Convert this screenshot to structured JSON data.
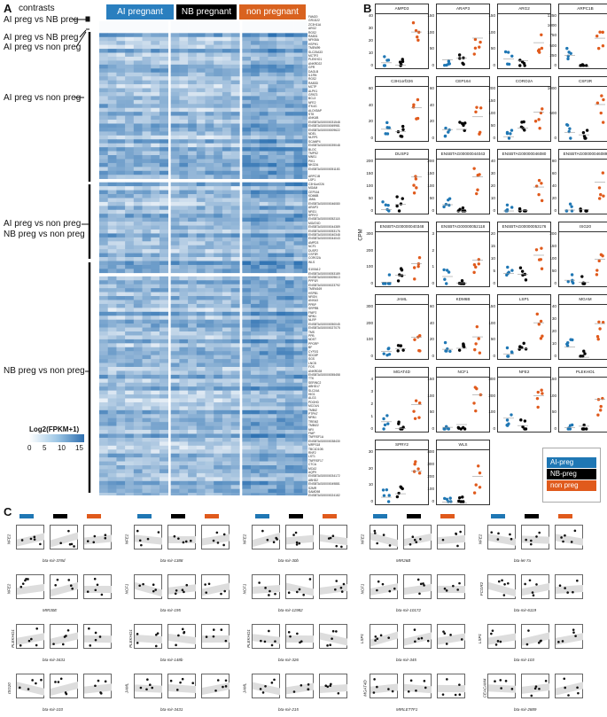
{
  "panels": {
    "a": "A",
    "b": "B",
    "c": "C"
  },
  "colors": {
    "ai": "#1f77b4",
    "nb": "#000000",
    "non": "#e05a1c"
  },
  "panelA": {
    "title": "contrasts",
    "groups": [
      "AI pregnant",
      "NB pregnant",
      "non pregnant"
    ],
    "contrasts": [
      "AI preg vs NB preg",
      "AI preg  vs NB preg",
      "AI preg vs non preg",
      "AI preg vs non preg",
      "AI preg  vs non preg",
      "NB preg  vs non preg",
      "NB preg  vs non preg"
    ],
    "legend": {
      "title": "Log2(FPKM+1)",
      "ticks": [
        "0",
        "5",
        "10",
        "15"
      ]
    },
    "genes": [
      "FAM20",
      "GR1D22",
      "ZC3H11A",
      "ARG2",
      "RGS2",
      "RAB31",
      "NFKBIA",
      "HSPH1",
      "TMEM99",
      "SLC25A33",
      "MCTP2",
      "PLEKHO1",
      "ANKRD22",
      "GPR",
      "DAGLB",
      "IL1RN",
      "RGS2",
      "RAB3D",
      "MCTP",
      "ALPK1",
      "GPAT3",
      "BCL3",
      "NFE2",
      "ITK4G",
      "ALOX5AP",
      "ST8",
      "ANKUB",
      "ENSBTAG00000031548",
      "ENSBTAG00000069981",
      "ENSBTAG00000009622",
      "NDEL",
      "NLRP1",
      "SCAMP4",
      "ENSBTAG00000039048",
      "BLOC",
      "TMPS2",
      "MNS1",
      "PIK1",
      "NKG2A",
      "ENSBTAG00000051183",
      "ARPC1B",
      "LSP1",
      "C3H1orf226",
      "MGAM",
      "CEP164",
      "KDM6B",
      "JAML",
      "ENSBTAG00000046080",
      "ARAP3",
      "NRG1",
      "SPRY2",
      "ENSBTAG00000052118",
      "MGAT4D",
      "ENSBTAG00000044389",
      "ENSBTAG00000053176",
      "ENSBTAG00000040348",
      "ENSBTAG00000044043",
      "AMPD3",
      "NCF1",
      "DUSP2",
      "CSF3R",
      "CORO2A",
      "WLS",
      "S100A12",
      "ENSBTAG00000053189",
      "ENSBTAG00000009613",
      "PPP1R",
      "ENSBTAG00000023792",
      "TMEM169",
      "HSPB1",
      "NRGN",
      "ANXA3",
      "PPBP",
      "SRPRB",
      "FNIP2",
      "NRN1",
      "NLRP",
      "ENSBTAG00000050045",
      "ENSBTAG00000027075",
      "TMS",
      "PPB",
      "NDST",
      "PPGRP",
      "BF",
      "CYP2G",
      "SDC8P",
      "SGS",
      "LNCB",
      "FOS",
      "ANKRD28",
      "ENSBTAG00000055458",
      "TTK",
      "SERINC2",
      "ABHD17",
      "SLC24A",
      "HIG1",
      "ALG3",
      "PDGHD",
      "MCOLN",
      "TMBIZ",
      "PTPN7",
      "NRN1",
      "TREM2",
      "TMBIZ2",
      "NRI",
      "FNIP",
      "TNFRSF1A",
      "ENSBTAG00000038430",
      "MRPS18",
      "TBC1D10B",
      "RNF2",
      "LST1",
      "TNFRSF17",
      "CTCA",
      "MCA2",
      "AQP9",
      "ENSBTAG00000034172",
      "ABHD2",
      "ENSBTAG00000049881",
      "S2MR",
      "SAMD98",
      "ENSBTAG00000024182"
    ]
  },
  "panelB": {
    "ylabel": "CPM",
    "legend": [
      "AI-preg",
      "NB-preg",
      "non preg"
    ],
    "genes": [
      {
        "name": "AMPD3",
        "ticks": [
          "40",
          "30",
          "20",
          "10",
          "0"
        ]
      },
      {
        "name": "ARAP3",
        "ticks": [
          "150",
          "100",
          "50",
          "0"
        ]
      },
      {
        "name": "ARG2",
        "ticks": [
          "150",
          "100",
          "50",
          "0"
        ]
      },
      {
        "name": "ARPC1B",
        "ticks": [
          "1250",
          "1000",
          "750",
          "500",
          "250",
          "0"
        ]
      },
      {
        "name": "C3H1orf226",
        "ticks": [
          "60",
          "40",
          "20",
          "0"
        ]
      },
      {
        "name": "CEP164",
        "ticks": [
          "60",
          "40",
          "20",
          "0"
        ]
      },
      {
        "name": "CORO2A",
        "ticks": [
          "200",
          "150",
          "100",
          "50",
          "0"
        ]
      },
      {
        "name": "CSF3R",
        "ticks": [
          "1000",
          "500",
          "0"
        ]
      },
      {
        "name": "DUSP2",
        "ticks": [
          "200",
          "150",
          "100",
          "50",
          "0"
        ]
      },
      {
        "name": "ENSBTAG00000044043",
        "ticks": [
          "200",
          "150",
          "100",
          "50",
          "0"
        ]
      },
      {
        "name": "ENSBTAG00000046080",
        "ticks": [
          "40",
          "30",
          "20",
          "10",
          "0"
        ]
      },
      {
        "name": "ENSBTAG00000046089",
        "ticks": [
          "80",
          "60",
          "40",
          "20",
          "0"
        ]
      },
      {
        "name": "ENSBTAG00000040348",
        "ticks": [
          "300",
          "200",
          "100",
          "0"
        ]
      },
      {
        "name": "ENSBTAG00000052118",
        "ticks": [
          "3",
          "2",
          "1",
          "0"
        ]
      },
      {
        "name": "ENSBTAG00000053176",
        "ticks": [
          "20",
          "15",
          "10",
          "5",
          "0"
        ]
      },
      {
        "name": "ISG20",
        "ticks": [
          "200",
          "150",
          "100",
          "50",
          "0"
        ]
      },
      {
        "name": "JAML",
        "ticks": [
          "300",
          "200",
          "100",
          "0"
        ]
      },
      {
        "name": "KDM6B",
        "ticks": [
          "60",
          "40",
          "20",
          "0"
        ]
      },
      {
        "name": "LSP1",
        "ticks": [
          "150",
          "100",
          "50",
          "0"
        ]
      },
      {
        "name": "MGAM",
        "ticks": [
          "40",
          "30",
          "20",
          "10",
          "0"
        ]
      },
      {
        "name": "MGAT4D",
        "ticks": [
          "4",
          "3",
          "2",
          "1",
          "0"
        ]
      },
      {
        "name": "NCF1",
        "ticks": [
          "150",
          "100",
          "50",
          "0"
        ]
      },
      {
        "name": "NFE2",
        "ticks": [
          "300",
          "200",
          "100",
          "0"
        ]
      },
      {
        "name": "PLEKHO1",
        "ticks": [
          "150",
          "100",
          "50",
          "0"
        ]
      },
      {
        "name": "SPRY2",
        "ticks": [
          "30",
          "20",
          "10",
          "0"
        ]
      },
      {
        "name": "WLS",
        "ticks": [
          "400",
          "300",
          "200",
          "100",
          "0"
        ]
      }
    ]
  },
  "panelC": {
    "rows": [
      {
        "gene": "NFE2",
        "mirs": [
          "bta-mir-378d",
          "bta-mir-1388",
          "bta-mir-30b",
          "MIR26B",
          "bta-let-7a"
        ]
      },
      {
        "gene": "NFE2",
        "mirs": [
          "MIR30E",
          "bta-mir-195",
          "bta-mir-11982",
          "bta-mir-10172",
          "bta-mir-6119"
        ]
      },
      {
        "gene": "PLEKHO1",
        "mirs": [
          "bta-mir-3431",
          "bta-mir-148b",
          "bta-mir-326",
          "bta-mir-345",
          "bta-mir-103"
        ]
      },
      {
        "gene": "ISG20",
        "mirs": [
          "bta-mir-103",
          "bta-mir-3431",
          "bta-mir-215",
          "MIRLET7F1",
          "bta-mir-2889"
        ]
      }
    ],
    "rowGenes": [
      [
        "NFE2",
        "NFE2",
        "NFE2",
        "NFE2",
        "NFE2"
      ],
      [
        "NFE2",
        "NCF1",
        "NCF1",
        "NCF1",
        "FCGR2"
      ],
      [
        "PLEKHO1",
        "PLEKHO1",
        "PLEKHO1",
        "LSP1",
        "LSP1"
      ],
      [
        "ISG20",
        "JAML",
        "JAML",
        "MGAT4D",
        "CEACAM4"
      ]
    ]
  }
}
